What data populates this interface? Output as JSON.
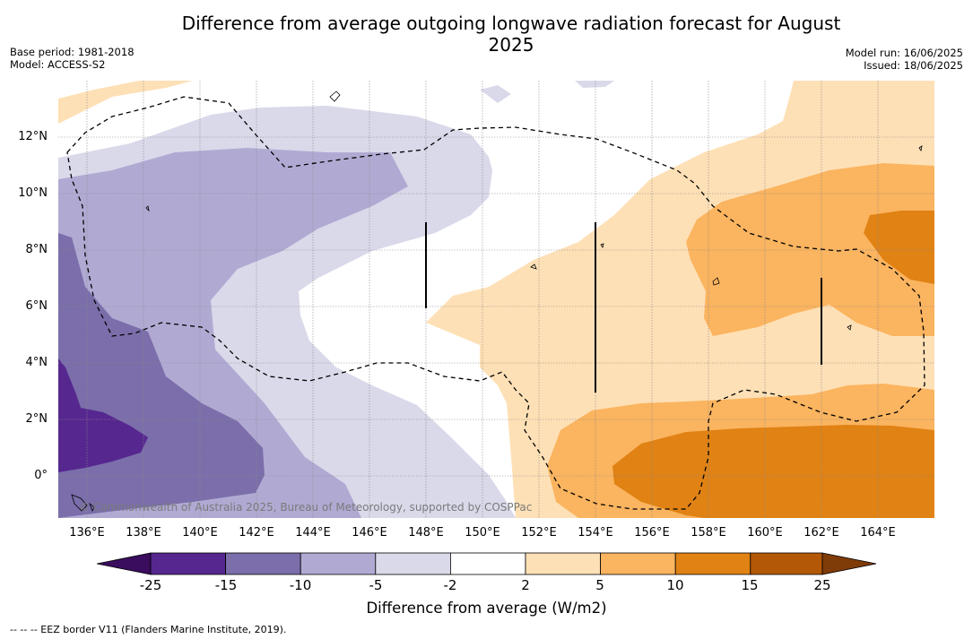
{
  "title": "Difference from average outgoing longwave radiation forecast for August 2025",
  "meta_left": [
    "Base period: 1981-2018",
    "Model: ACCESS-S2"
  ],
  "meta_right": [
    "Model run: 16/06/2025",
    "Issued: 18/06/2025"
  ],
  "lat_labels": [
    "12°N",
    "10°N",
    "8°N",
    "6°N",
    "4°N",
    "2°N",
    "0°"
  ],
  "lon_labels": [
    "136°E",
    "138°E",
    "140°E",
    "142°E",
    "144°E",
    "146°E",
    "148°E",
    "150°E",
    "152°E",
    "154°E",
    "156°E",
    "158°E",
    "160°E",
    "162°E",
    "164°E"
  ],
  "copyright": "© Commonwealth of Australia 2025, Bureau of Meteorology, supported by COSPPac",
  "colorbar": {
    "ticks": [
      "-25",
      "-15",
      "-10",
      "-5",
      "-2",
      "2",
      "5",
      "10",
      "15",
      "25"
    ],
    "colors": [
      "#3a0d5e",
      "#56278f",
      "#7b6eaa",
      "#b0aad3",
      "#d9d9ea",
      "#ffffff",
      "#fee0b6",
      "#fbb45f",
      "#e08214",
      "#b35806",
      "#7f3b08"
    ],
    "label": "Difference from average (W/m2)"
  },
  "footnote": "--  --  -- EEZ border V11 (Flanders Marine Institute, 2019)."
}
